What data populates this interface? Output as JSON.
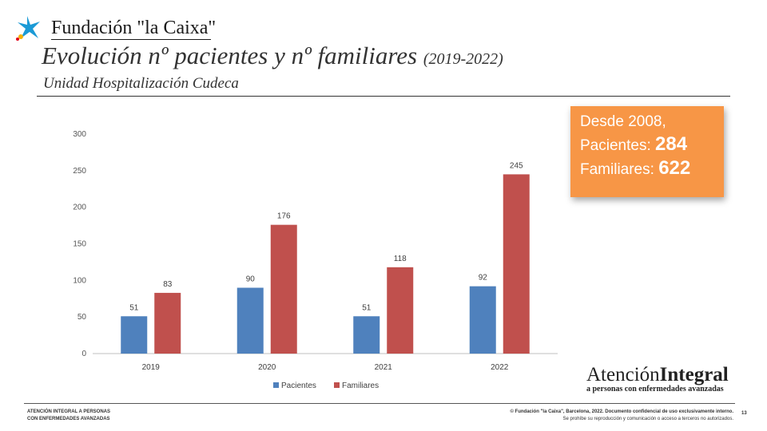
{
  "logo": {
    "text": "Fundación \"la Caixa\""
  },
  "title": {
    "main": "Evolución nº pacientes y nº familiares",
    "years": "(2019-2022)"
  },
  "subtitle": "Unidad Hospitalización Cudeca",
  "callout": {
    "line1": "Desde 2008,",
    "pacientes_label": "Pacientes:",
    "pacientes_value": "284",
    "familiares_label": "Familiares:",
    "familiares_value": "622",
    "bg_color": "#f79646"
  },
  "chart_data": {
    "type": "bar",
    "categories": [
      "2019",
      "2020",
      "2021",
      "2022"
    ],
    "series": [
      {
        "name": "Pacientes",
        "values": [
          51,
          90,
          51,
          92
        ],
        "color": "#4f81bd"
      },
      {
        "name": "Familiares",
        "values": [
          83,
          176,
          118,
          245
        ],
        "color": "#c0504d"
      }
    ],
    "yticks": [
      0,
      50,
      100,
      150,
      200,
      250,
      300
    ],
    "ylim": [
      0,
      300
    ],
    "title": "",
    "xlabel": "",
    "ylabel": "",
    "legend": "bottom"
  },
  "brand": {
    "main_light": "Atención",
    "main_bold": "Integral",
    "sub": "a personas con enfermedades avanzadas"
  },
  "footer": {
    "left_line1": "ATENCIÓN INTEGRAL A PERSONAS",
    "left_line2": "CON ENFERMEDADES AVANZADAS",
    "right_line1": "© Fundación \"la Caixa\", Barcelona, 2022. Documento confidencial de uso exclusivamente interno.",
    "right_line2": "Se prohíbe su reproducción y comunicación o acceso a terceros no autorizados.",
    "page_number": "13"
  }
}
